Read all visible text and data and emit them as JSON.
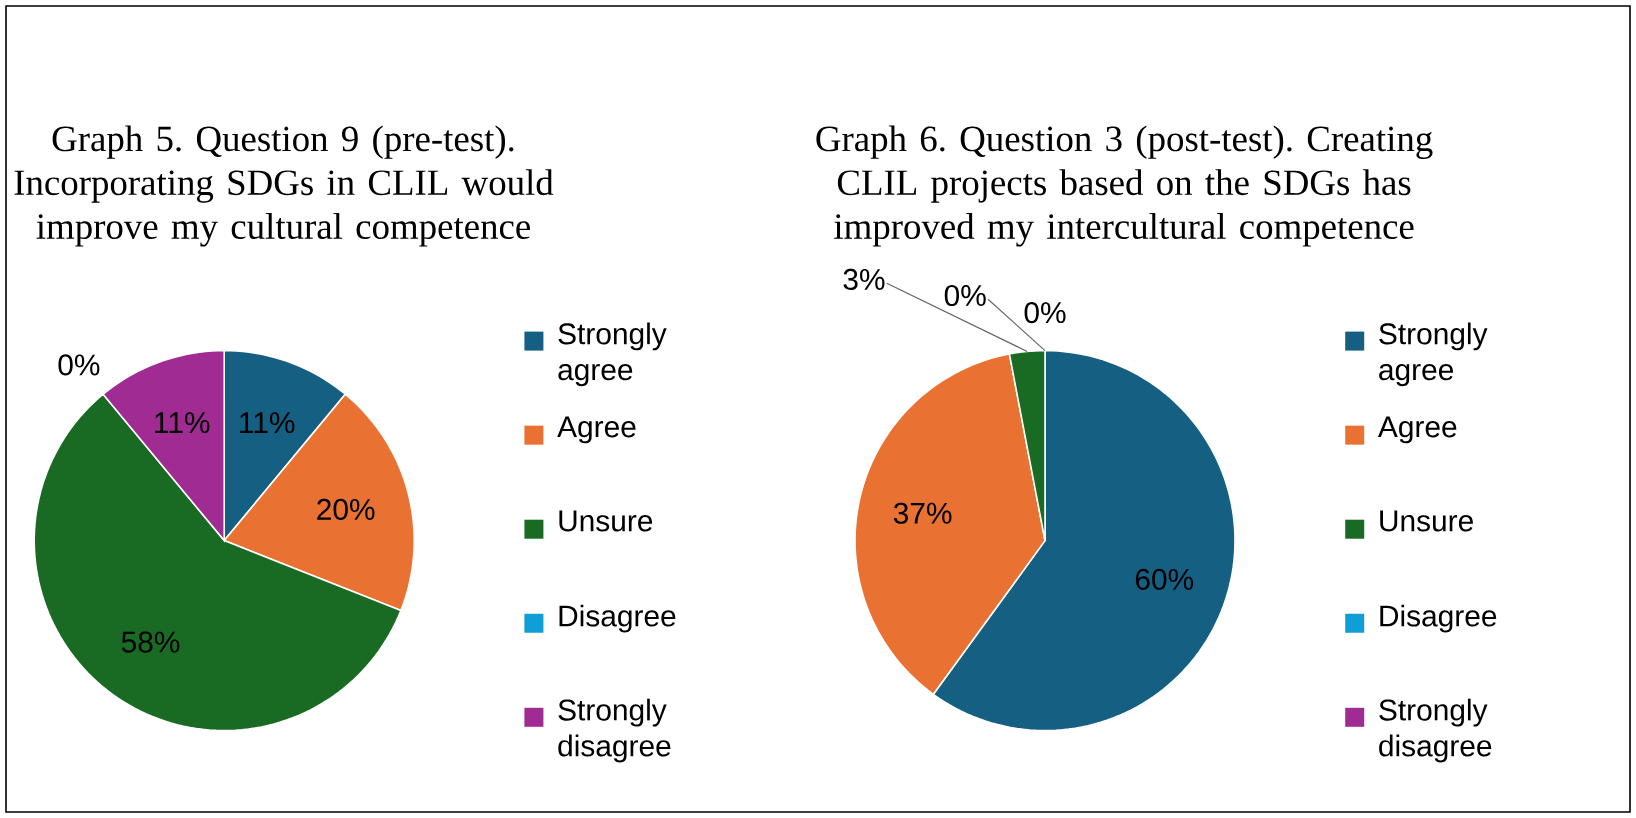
{
  "chart_data": [
    {
      "type": "pie",
      "title": "Graph 5. Question 9 (pre-test). Incorporating SDGs in CLIL would improve my cultural competence",
      "categories": [
        "Strongly agree",
        "Agree",
        "Unsure",
        "Disagree",
        "Strongly disagree"
      ],
      "values": [
        11,
        20,
        58,
        0,
        11
      ],
      "value_labels": [
        "11%",
        "20%",
        "58%",
        "0%",
        "11%"
      ],
      "colors": [
        "#156082",
        "#e97132",
        "#196b24",
        "#0f9ed5",
        "#a02b93"
      ],
      "legend": "right"
    },
    {
      "type": "pie",
      "title": "Graph 6. Question 3 (post-test). Creating CLIL projects based on the SDGs has improved my intercultural competence",
      "categories": [
        "Strongly agree",
        "Agree",
        "Unsure",
        "Disagree",
        "Strongly disagree"
      ],
      "values": [
        60,
        37,
        3,
        0,
        0
      ],
      "value_labels": [
        "60%",
        "37%",
        "3%",
        "0%",
        "0%"
      ],
      "colors": [
        "#156082",
        "#e97132",
        "#196b24",
        "#0f9ed5",
        "#a02b93"
      ],
      "legend": "right"
    }
  ]
}
